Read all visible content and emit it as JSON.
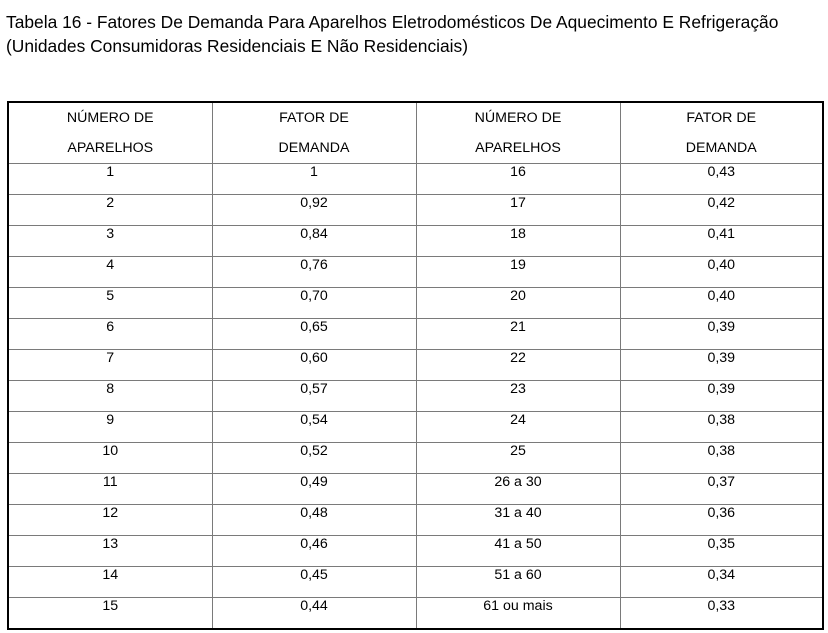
{
  "title": {
    "line1": "Tabela 16 - Fatores De Demanda Para Aparelhos Eletrodomésticos De Aquecimento E Refrigeração",
    "line2": "(Unidades Consumidoras Residenciais E Não Residenciais)"
  },
  "table": {
    "headers": [
      {
        "line1": "NÚMERO DE",
        "line2": "APARELHOS"
      },
      {
        "line1": "FATOR DE",
        "line2": "DEMANDA"
      },
      {
        "line1": "NÚMERO DE",
        "line2": "APARELHOS"
      },
      {
        "line1": "FATOR DE",
        "line2": "DEMANDA"
      }
    ],
    "rows": [
      [
        "1",
        "1",
        "16",
        "0,43"
      ],
      [
        "2",
        "0,92",
        "17",
        "0,42"
      ],
      [
        "3",
        "0,84",
        "18",
        "0,41"
      ],
      [
        "4",
        "0,76",
        "19",
        "0,40"
      ],
      [
        "5",
        "0,70",
        "20",
        "0,40"
      ],
      [
        "6",
        "0,65",
        "21",
        "0,39"
      ],
      [
        "7",
        "0,60",
        "22",
        "0,39"
      ],
      [
        "8",
        "0,57",
        "23",
        "0,39"
      ],
      [
        "9",
        "0,54",
        "24",
        "0,38"
      ],
      [
        "10",
        "0,52",
        "25",
        "0,38"
      ],
      [
        "11",
        "0,49",
        "26 a 30",
        "0,37"
      ],
      [
        "12",
        "0,48",
        "31 a 40",
        "0,36"
      ],
      [
        "13",
        "0,46",
        "41 a 50",
        "0,35"
      ],
      [
        "14",
        "0,45",
        "51 a 60",
        "0,34"
      ],
      [
        "15",
        "0,44",
        "61 ou mais",
        "0,33"
      ]
    ]
  }
}
